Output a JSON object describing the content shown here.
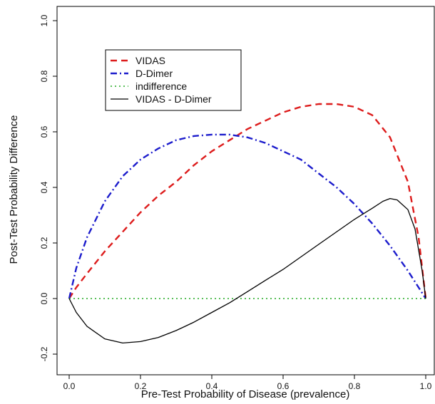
{
  "chart_data": {
    "type": "line",
    "title": "",
    "xlabel": "Pre-Test Probability of Disease (prevalence)",
    "ylabel": "Post-Test Probability Difference",
    "xlim": [
      0.0,
      1.0
    ],
    "ylim": [
      -0.2,
      1.0
    ],
    "xticks": [
      0.0,
      0.2,
      0.4,
      0.6,
      0.8,
      1.0
    ],
    "xtick_labels": [
      "0.0",
      "0.2",
      "0.4",
      "0.6",
      "0.8",
      "1.0"
    ],
    "yticks": [
      -0.2,
      0.0,
      0.2,
      0.4,
      0.6,
      0.8,
      1.0
    ],
    "ytick_labels": [
      "-0.2",
      "0.0",
      "0.2",
      "0.4",
      "0.6",
      "0.8",
      "1.0"
    ],
    "grid": false,
    "legend_position": "top-left",
    "series": [
      {
        "name": "VIDAS",
        "color": "#dd1c1c",
        "dash": "dashed",
        "x": [
          0.0,
          0.02,
          0.05,
          0.1,
          0.15,
          0.2,
          0.25,
          0.3,
          0.35,
          0.4,
          0.45,
          0.5,
          0.55,
          0.6,
          0.65,
          0.7,
          0.75,
          0.8,
          0.85,
          0.9,
          0.95,
          0.98,
          1.0
        ],
        "y": [
          0.0,
          0.04,
          0.09,
          0.17,
          0.24,
          0.31,
          0.37,
          0.42,
          0.48,
          0.53,
          0.57,
          0.61,
          0.64,
          0.67,
          0.69,
          0.7,
          0.7,
          0.69,
          0.66,
          0.58,
          0.42,
          0.22,
          0.0
        ]
      },
      {
        "name": "D-Dimer",
        "color": "#1c1ccc",
        "dash": "dotdash",
        "x": [
          0.0,
          0.02,
          0.05,
          0.1,
          0.15,
          0.2,
          0.25,
          0.3,
          0.35,
          0.4,
          0.45,
          0.5,
          0.55,
          0.6,
          0.65,
          0.7,
          0.75,
          0.8,
          0.85,
          0.9,
          0.95,
          0.98,
          1.0
        ],
        "y": [
          0.0,
          0.11,
          0.22,
          0.35,
          0.44,
          0.5,
          0.54,
          0.57,
          0.585,
          0.59,
          0.59,
          0.58,
          0.56,
          0.53,
          0.5,
          0.45,
          0.4,
          0.34,
          0.27,
          0.19,
          0.1,
          0.04,
          0.0
        ]
      },
      {
        "name": "indifference",
        "color": "#22aa22",
        "dash": "dotted",
        "x": [
          0.0,
          1.0
        ],
        "y": [
          0.0,
          0.0
        ]
      },
      {
        "name": "VIDAS  -  D-Dimer",
        "color": "#000000",
        "dash": "solid",
        "x": [
          0.0,
          0.02,
          0.05,
          0.1,
          0.15,
          0.2,
          0.25,
          0.3,
          0.35,
          0.4,
          0.45,
          0.5,
          0.55,
          0.6,
          0.65,
          0.7,
          0.75,
          0.8,
          0.85,
          0.88,
          0.9,
          0.92,
          0.95,
          0.97,
          0.99,
          1.0
        ],
        "y": [
          0.0,
          -0.05,
          -0.1,
          -0.145,
          -0.16,
          -0.155,
          -0.14,
          -0.115,
          -0.085,
          -0.05,
          -0.015,
          0.025,
          0.065,
          0.105,
          0.15,
          0.195,
          0.24,
          0.285,
          0.325,
          0.35,
          0.36,
          0.355,
          0.32,
          0.25,
          0.1,
          0.0
        ]
      }
    ]
  }
}
